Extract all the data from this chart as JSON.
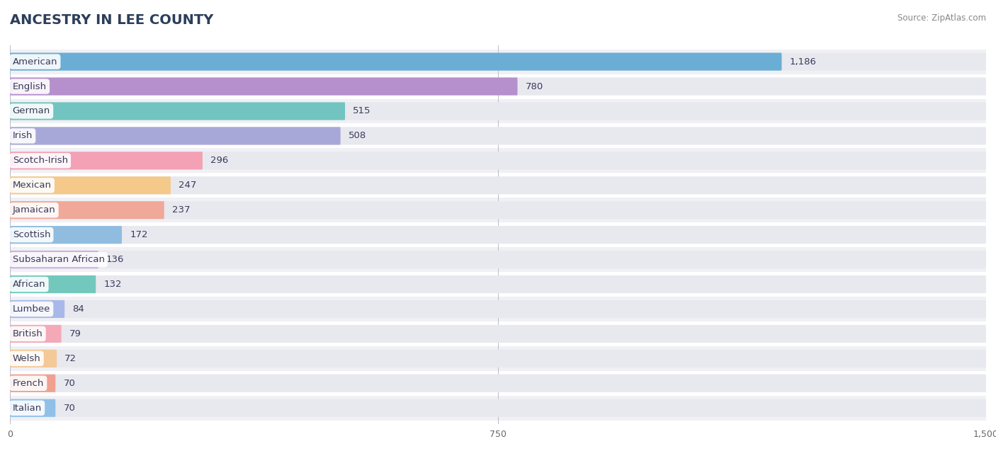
{
  "title": "ANCESTRY IN LEE COUNTY",
  "source": "Source: ZipAtlas.com",
  "categories": [
    "American",
    "English",
    "German",
    "Irish",
    "Scotch-Irish",
    "Mexican",
    "Jamaican",
    "Scottish",
    "Subsaharan African",
    "African",
    "Lumbee",
    "British",
    "Welsh",
    "French",
    "Italian"
  ],
  "values": [
    1186,
    780,
    515,
    508,
    296,
    247,
    237,
    172,
    136,
    132,
    84,
    79,
    72,
    70,
    70
  ],
  "bar_colors": [
    "#6aaed6",
    "#b590cc",
    "#72c4c0",
    "#a8a8d8",
    "#f4a0b5",
    "#f5c98a",
    "#f0a898",
    "#90bce0",
    "#c4aed8",
    "#72c8bc",
    "#a8b8e8",
    "#f4a8b8",
    "#f5c898",
    "#f0a090",
    "#90c0e8"
  ],
  "dot_colors": [
    "#4a90c4",
    "#9060b8",
    "#40a8a8",
    "#8080c0",
    "#e86080",
    "#e8a040",
    "#e07060",
    "#6090cc",
    "#9870b8",
    "#40a090",
    "#7080c8",
    "#e07890",
    "#e0a050",
    "#e07060",
    "#6090c8"
  ],
  "bg_row_colors": [
    "#f0f0f5",
    "#ffffff"
  ],
  "xlim": [
    0,
    1500
  ],
  "xticks": [
    0,
    750,
    1500
  ],
  "background_color": "#ffffff",
  "title_color": "#2c3e5a",
  "bar_bg_color": "#e8e8ef"
}
